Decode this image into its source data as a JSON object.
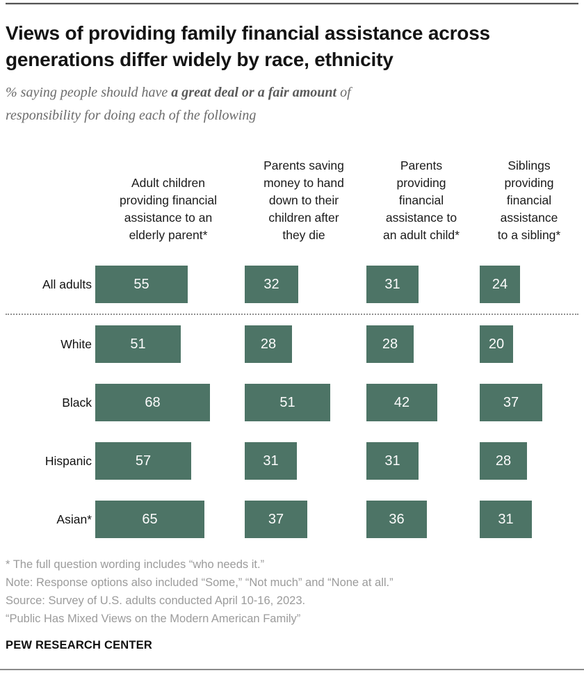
{
  "header": {
    "title": "Views of providing family financial assistance across generations differ widely by race, ethnicity",
    "subtitle_prefix": "% saying people should have ",
    "subtitle_bold": "a great deal or a fair amount",
    "subtitle_suffix": " of",
    "subtitle_line2": "responsibility for doing each of the following"
  },
  "chart_data": {
    "type": "bar",
    "orientation": "horizontal",
    "unit": "%",
    "title": "Views of providing family financial assistance across generations differ widely by race, ethnicity",
    "subtitle": "% saying people should have a great deal or a fair amount of responsibility for doing each of the following",
    "categories": [
      "All adults",
      "White",
      "Black",
      "Hispanic",
      "Asian*"
    ],
    "series": [
      {
        "name": "Adult children providing financial assistance to an elderly parent*",
        "header_display": "Adult children\nproviding financial\nassistance to an\nelderly parent*",
        "values": [
          55,
          51,
          68,
          57,
          65
        ]
      },
      {
        "name": "Parents saving money to hand down to their children after they die",
        "header_display": "Parents saving\nmoney to hand\ndown to their\nchildren after\nthey die",
        "values": [
          32,
          28,
          51,
          31,
          37
        ]
      },
      {
        "name": "Parents providing financial assistance to an adult child*",
        "header_display": "Parents\nproviding\nfinancial\nassistance to\nan adult child*",
        "values": [
          31,
          28,
          42,
          31,
          36
        ]
      },
      {
        "name": "Siblings providing financial assistance to a sibling*",
        "header_display": "Siblings\nproviding\nfinancial\nassistance\nto a sibling*",
        "values": [
          24,
          20,
          37,
          28,
          31
        ]
      }
    ],
    "xlim": [
      0,
      100
    ],
    "grid": false,
    "legend_position": "none",
    "bar_color": "#4d7466",
    "value_label_color": "#fcfcfc",
    "separator_after_category": "All adults"
  },
  "footer": {
    "notes": [
      "* The full question wording includes “who needs it.”",
      "Note: Response options also included “Some,” “Not much” and “None at all.”",
      "Source: Survey of U.S. adults conducted April 10-16, 2023.",
      "“Public Has Mixed Views on the Modern American Family”"
    ],
    "brand": "PEW RESEARCH CENTER"
  }
}
